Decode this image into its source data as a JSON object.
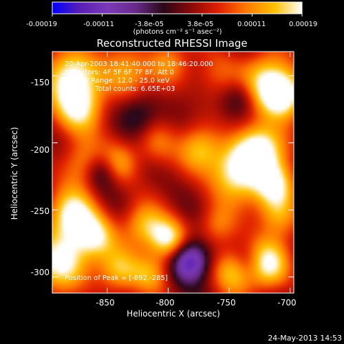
{
  "colorbar": {
    "tick_labels": [
      "-0.00019",
      "-0.00011",
      "-3.8e-05",
      "3.8e-05",
      "0.00011",
      "0.00019"
    ],
    "unit_label": "(photons cm⁻² s⁻¹ asec⁻²)",
    "range": [
      -0.00019,
      0.00019
    ]
  },
  "chart_data": {
    "type": "heatmap",
    "title": "Reconstructed RHESSI Image",
    "xlabel": "Heliocentric X (arcsec)",
    "ylabel": "Heliocentric Y (arcsec)",
    "xlim": [
      -895,
      -697
    ],
    "ylim": [
      -312,
      -132
    ],
    "x_ticks": [
      -850,
      -800,
      -750,
      -700
    ],
    "y_ticks": [
      -300,
      -250,
      -200,
      -150
    ],
    "annotations": [
      "20-Apr-2003 18:41:40.000 to 18:46:20.000",
      "Detectors: 4F 5F 6F 7F 8F, Att 0",
      "Energy Range: 12.0 - 25.0 keV",
      "Clean     Total counts: 6.65E+03"
    ],
    "peak_label": "Position of Peak = [-892,-285]",
    "peak": [
      -892,
      -285
    ],
    "colormap": [
      "#0000ff",
      "#5a1fb4",
      "#7a3ab8",
      "#6a2a8a",
      "#2a0818",
      "#8a0808",
      "#e02000",
      "#ff7a00",
      "#ffc000",
      "#ffffff"
    ],
    "blobs": [
      {
        "x": -880,
        "y": -150,
        "v": 0.85,
        "s": 16
      },
      {
        "x": -872,
        "y": -175,
        "v": 0.75,
        "s": 14
      },
      {
        "x": -835,
        "y": -148,
        "v": 0.6,
        "s": 14
      },
      {
        "x": -800,
        "y": -140,
        "v": 0.45,
        "s": 12
      },
      {
        "x": -760,
        "y": -150,
        "v": 0.35,
        "s": 14
      },
      {
        "x": -720,
        "y": -155,
        "v": 0.85,
        "s": 15
      },
      {
        "x": -705,
        "y": -165,
        "v": 0.9,
        "s": 12
      },
      {
        "x": -870,
        "y": -215,
        "v": 0.55,
        "s": 13
      },
      {
        "x": -840,
        "y": -215,
        "v": 0.5,
        "s": 11
      },
      {
        "x": -810,
        "y": -200,
        "v": 0.45,
        "s": 12
      },
      {
        "x": -775,
        "y": -205,
        "v": 0.55,
        "s": 12
      },
      {
        "x": -745,
        "y": -222,
        "v": 0.85,
        "s": 16
      },
      {
        "x": -725,
        "y": -205,
        "v": 0.95,
        "s": 14
      },
      {
        "x": -712,
        "y": -232,
        "v": 0.8,
        "s": 12
      },
      {
        "x": -878,
        "y": -255,
        "v": 0.9,
        "s": 14
      },
      {
        "x": -860,
        "y": -270,
        "v": 0.7,
        "s": 12
      },
      {
        "x": -820,
        "y": -262,
        "v": 0.6,
        "s": 12
      },
      {
        "x": -800,
        "y": -272,
        "v": 0.85,
        "s": 11
      },
      {
        "x": -760,
        "y": -262,
        "v": 0.4,
        "s": 11
      },
      {
        "x": -710,
        "y": -255,
        "v": 0.55,
        "s": 12
      },
      {
        "x": -888,
        "y": -290,
        "v": 0.95,
        "s": 15
      },
      {
        "x": -840,
        "y": -295,
        "v": 0.6,
        "s": 12
      },
      {
        "x": -815,
        "y": -298,
        "v": 0.55,
        "s": 11
      },
      {
        "x": -745,
        "y": -295,
        "v": 0.85,
        "s": 12
      },
      {
        "x": -720,
        "y": -290,
        "v": 0.9,
        "s": 13
      },
      {
        "x": -782,
        "y": -288,
        "v": -1.0,
        "s": 11
      },
      {
        "x": -855,
        "y": -220,
        "v": -0.5,
        "s": 10
      },
      {
        "x": -825,
        "y": -180,
        "v": -0.4,
        "s": 12
      },
      {
        "x": -740,
        "y": -165,
        "v": -0.45,
        "s": 11
      },
      {
        "x": -735,
        "y": -290,
        "v": -0.55,
        "s": 10
      }
    ]
  },
  "footer": {
    "timestamp": "24-May-2013 14:53"
  }
}
